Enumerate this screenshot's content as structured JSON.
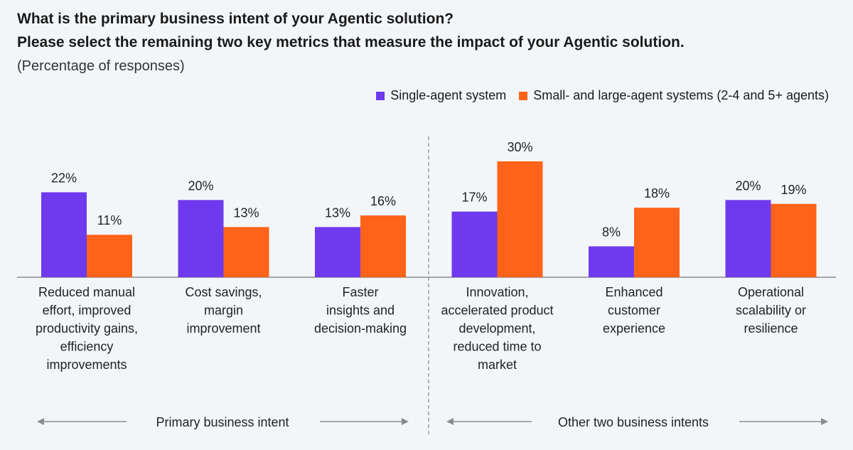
{
  "chart_data": {
    "type": "bar",
    "title": "What is the primary business intent of your Agentic solution?",
    "subtitle": "Please select the remaining two key metrics that measure the impact of your Agentic solution.",
    "note": "(Percentage of responses)",
    "categories": [
      [
        "Reduced manual",
        "effort, improved",
        "productivity gains,",
        "efficiency",
        "improvements"
      ],
      [
        "Cost savings,",
        "margin",
        "improvement"
      ],
      [
        "Faster",
        "insights and",
        "decision-making"
      ],
      [
        "Innovation,",
        "accelerated product",
        "development,",
        "reduced time to",
        "market"
      ],
      [
        "Enhanced",
        "customer",
        "experience"
      ],
      [
        "Operational",
        "scalability or",
        "resilience"
      ]
    ],
    "series": [
      {
        "name": "Single-agent system",
        "color": "#6f3aee",
        "values": [
          22,
          20,
          13,
          17,
          8,
          20
        ]
      },
      {
        "name": "Small- and large-agent systems (2-4 and 5+ agents)",
        "color": "#ff6319",
        "values": [
          11,
          13,
          16,
          30,
          18,
          19
        ]
      }
    ],
    "value_suffix": "%",
    "groups": [
      {
        "label": "Primary business intent",
        "categories": [
          0,
          1,
          2
        ]
      },
      {
        "label": "Other two business intents",
        "categories": [
          3,
          4,
          5
        ]
      }
    ],
    "ylim": [
      0,
      30
    ],
    "grid": false,
    "legend_position": "top-right"
  }
}
